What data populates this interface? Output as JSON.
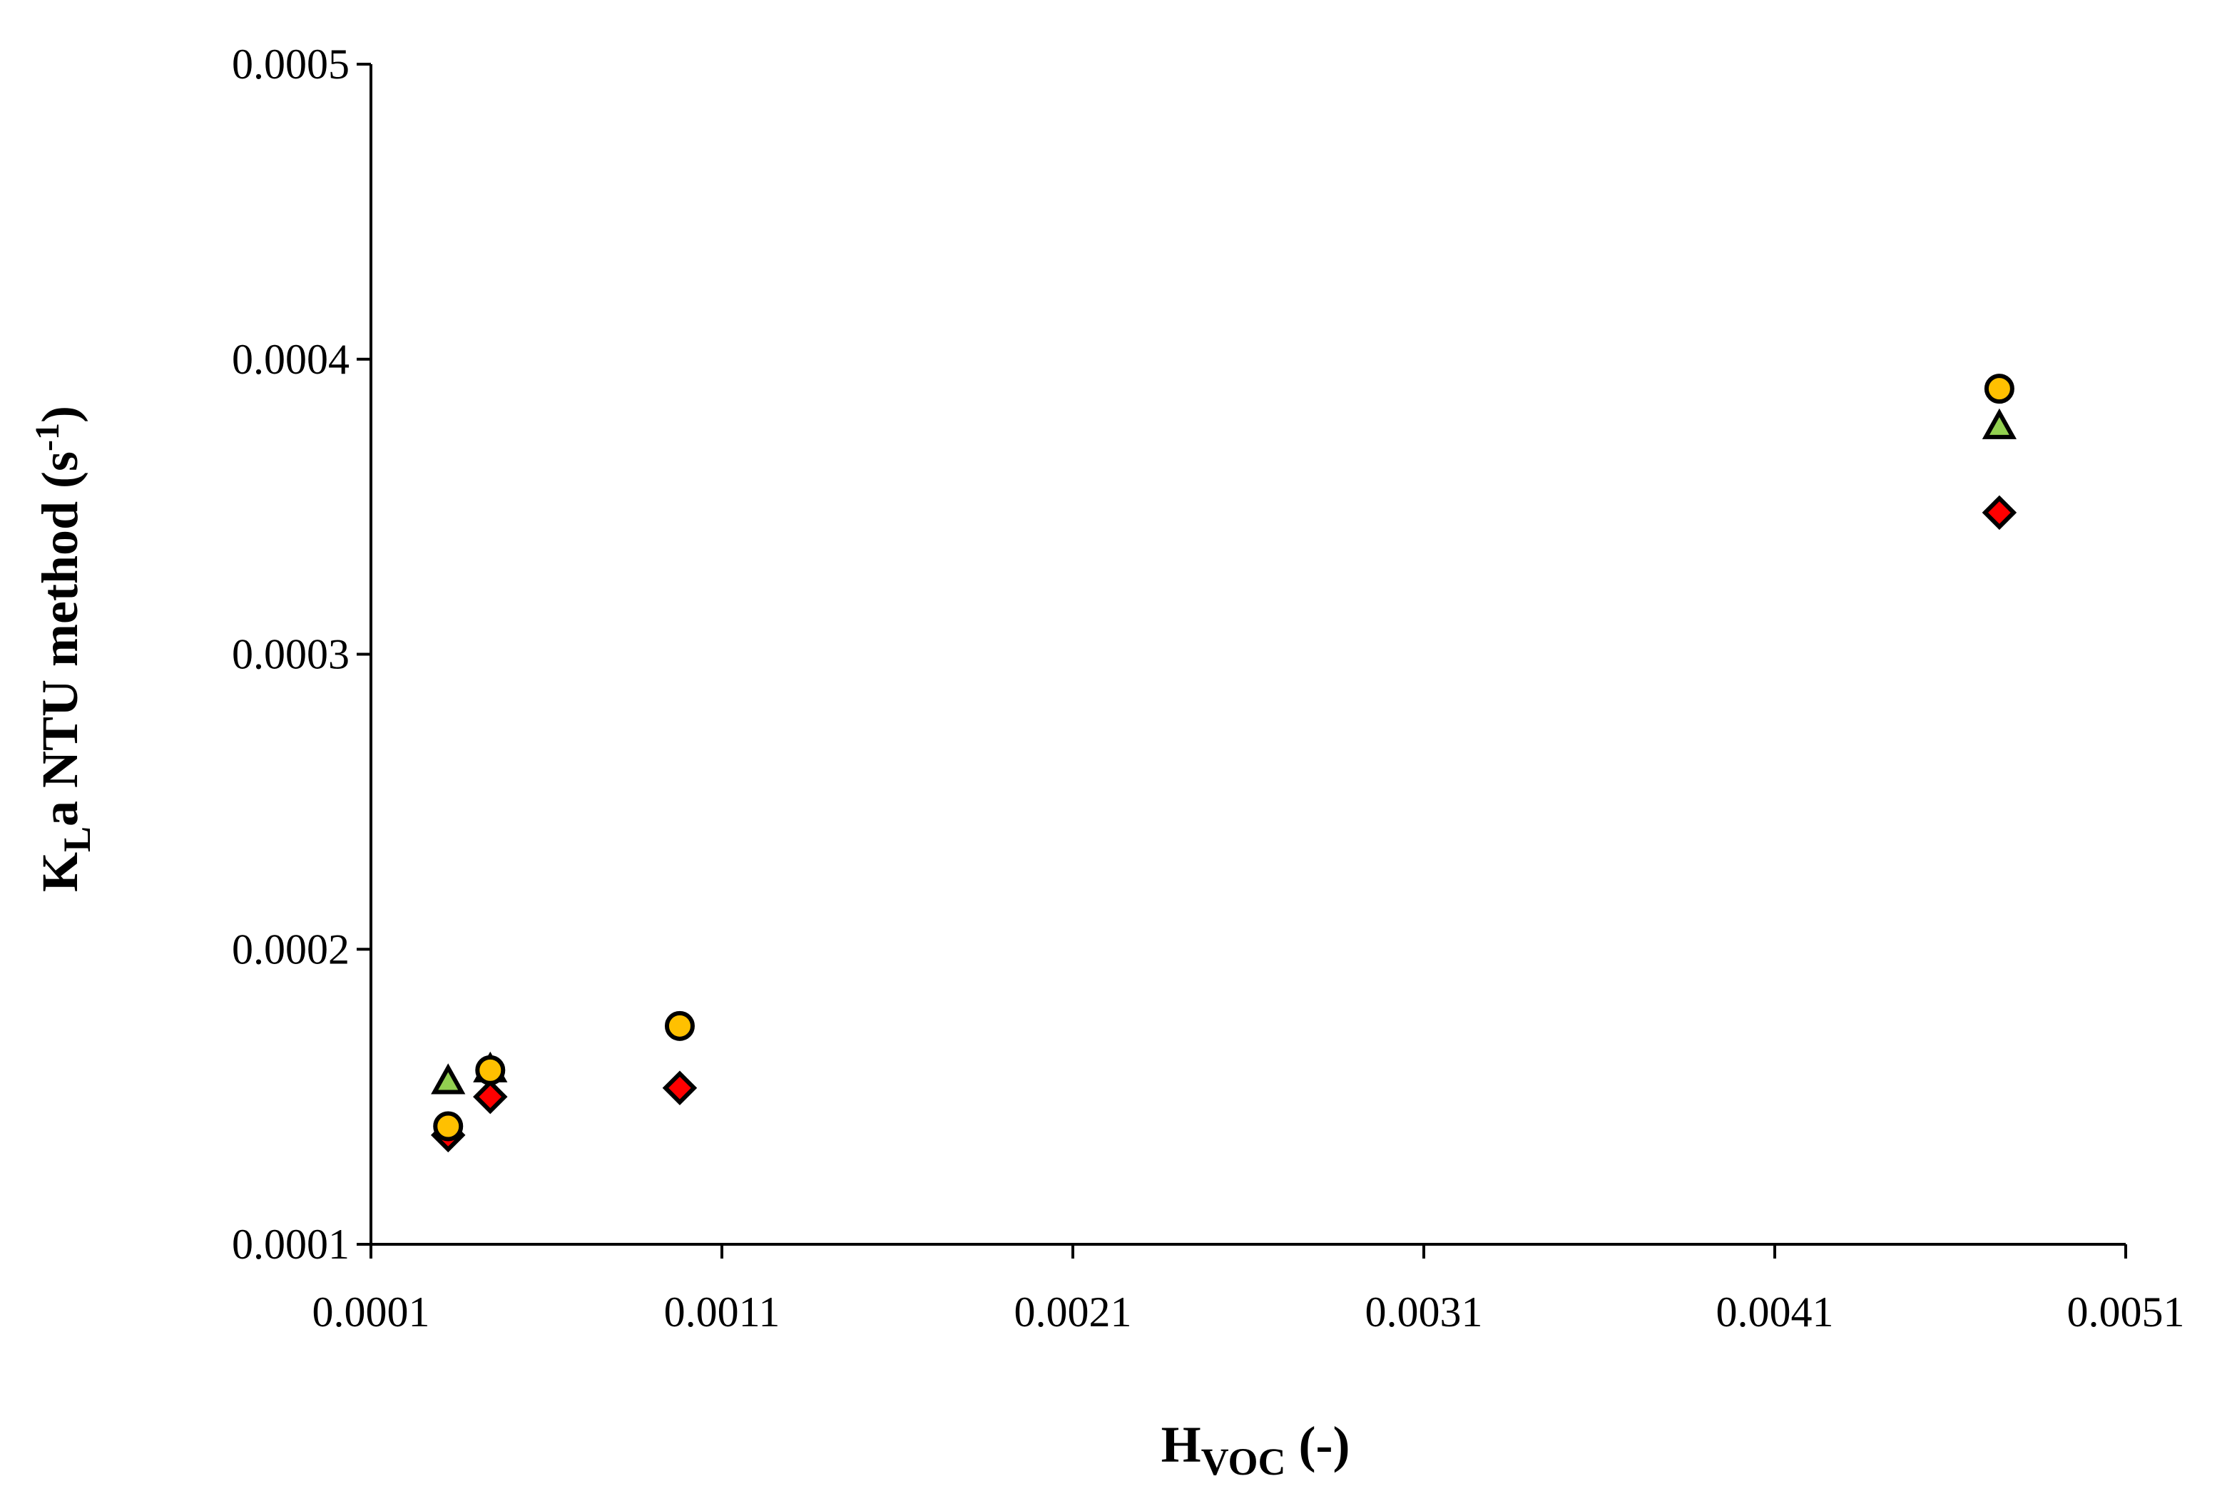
{
  "chart_data": {
    "type": "scatter",
    "title": "",
    "xlabel": {
      "main": "H",
      "sub": "VOC",
      "suffix": " (-)"
    },
    "ylabel": {
      "main": "K",
      "sub": "L",
      "middle": "a NTU method (s",
      "sup": "-1",
      "suffix": ")"
    },
    "xlim": [
      0.0001,
      0.0051
    ],
    "ylim": [
      0.0001,
      0.0005
    ],
    "xticks": [
      0.0001,
      0.0011,
      0.0021,
      0.0031,
      0.0041,
      0.0051
    ],
    "xtick_labels": [
      "0.0001",
      "0.0011",
      "0.0021",
      "0.0031",
      "0.0041",
      "0.0051"
    ],
    "yticks": [
      0.0001,
      0.0002,
      0.0003,
      0.0004,
      0.0005
    ],
    "ytick_labels": [
      "0.0001",
      "0.0002",
      "0.0003",
      "0.0004",
      "0.0005"
    ],
    "grid": false,
    "legend": "none",
    "series": [
      {
        "marker": "diamond",
        "color": "#ff0000",
        "points": [
          {
            "x": 0.00032,
            "y": 0.000137
          },
          {
            "x": 0.00044,
            "y": 0.00015
          },
          {
            "x": 0.00098,
            "y": 0.000153
          },
          {
            "x": 0.00474,
            "y": 0.000348
          }
        ]
      },
      {
        "marker": "triangle",
        "color": "#92d050",
        "points": [
          {
            "x": 0.00032,
            "y": 0.000155
          },
          {
            "x": 0.00044,
            "y": 0.000159
          },
          {
            "x": 0.00474,
            "y": 0.000377
          }
        ]
      },
      {
        "marker": "circle",
        "color": "#ffc000",
        "points": [
          {
            "x": 0.00032,
            "y": 0.00014
          },
          {
            "x": 0.00044,
            "y": 0.000159
          },
          {
            "x": 0.00098,
            "y": 0.000174
          },
          {
            "x": 0.00474,
            "y": 0.00039
          }
        ]
      }
    ]
  }
}
